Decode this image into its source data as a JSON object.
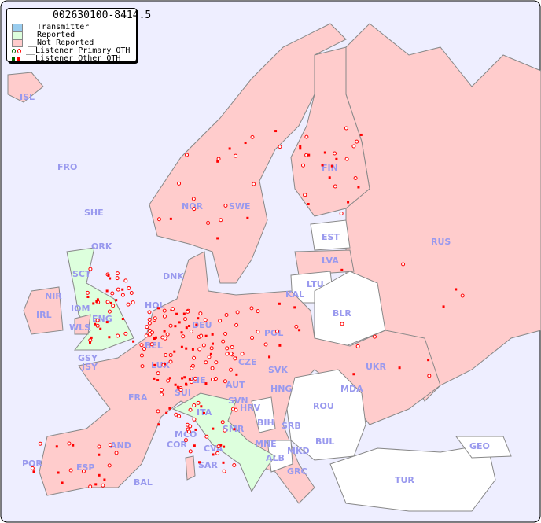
{
  "title": "002630100-8414.5",
  "legend": {
    "items": [
      {
        "label": "__Transmitter",
        "color": "#99ccee"
      },
      {
        "label": "__Reported",
        "color": "#ddffdd"
      },
      {
        "label": "__Not Reported",
        "color": "#ffcccc"
      },
      {
        "label": "__Listener Primary QTH",
        "marker": "circle",
        "colors": [
          "#006600",
          "#ff0000"
        ]
      },
      {
        "label": "__Listener Other QTH",
        "marker": "square",
        "colors": [
          "#006600",
          "#ff0000"
        ]
      }
    ]
  },
  "colors": {
    "sea": "#eeeeff",
    "not_reported": "#ffcccc",
    "reported": "#ddffdd",
    "no_data": "#ffffff",
    "label": "#9999ee",
    "listener": "#ff0000"
  },
  "countries": {
    "reported": [
      "SCT",
      "ENG",
      "ITA",
      "SMR",
      "CVA"
    ],
    "not_reported": [
      "ISL",
      "FRO",
      "NOR",
      "SWE",
      "FIN",
      "RUS",
      "LVA",
      "KAL",
      "DNK",
      "HOL",
      "DEU",
      "POL",
      "IRL",
      "NIR",
      "IOM",
      "WLS",
      "GSY",
      "JSY",
      "BEL",
      "LUX",
      "CZE",
      "SVK",
      "UKR",
      "FRA",
      "SUI",
      "LIE",
      "AUT",
      "HNG",
      "SVN",
      "HRV",
      "SRB",
      "MCO",
      "COR",
      "MNE",
      "GRC",
      "POR",
      "ESP",
      "AND",
      "BAL",
      "SAR"
    ],
    "no_data": [
      "SHE",
      "ORK",
      "EST",
      "LTU",
      "BLR",
      "MDA",
      "ROU",
      "BIH",
      "BUL",
      "ALB",
      "MKD",
      "TUR",
      "GEO"
    ]
  },
  "labels": [
    "ISL",
    "FRO",
    "SHE",
    "ORK",
    "NOR",
    "SWE",
    "FIN",
    "EST",
    "RUS",
    "LVA",
    "LTU",
    "KAL",
    "BLR",
    "DNK",
    "HOL",
    "DEU",
    "POL",
    "SCT",
    "NIR",
    "IRL",
    "IOM",
    "ENG",
    "WLS",
    "GSY",
    "JSY",
    "BEL",
    "LUX",
    "CZE",
    "SVK",
    "UKR",
    "FRA",
    "SUI",
    "LIE",
    "AUT",
    "HNG",
    "MDA",
    "ROU",
    "SVN",
    "HRV",
    "BIH",
    "SRB",
    "ITA",
    "MCO",
    "COR",
    "SMR",
    "CVA",
    "MNE",
    "ALB",
    "MKD",
    "BUL",
    "GRC",
    "TUR",
    "GEO",
    "POR",
    "ESP",
    "AND",
    "BAL",
    "SAR"
  ]
}
